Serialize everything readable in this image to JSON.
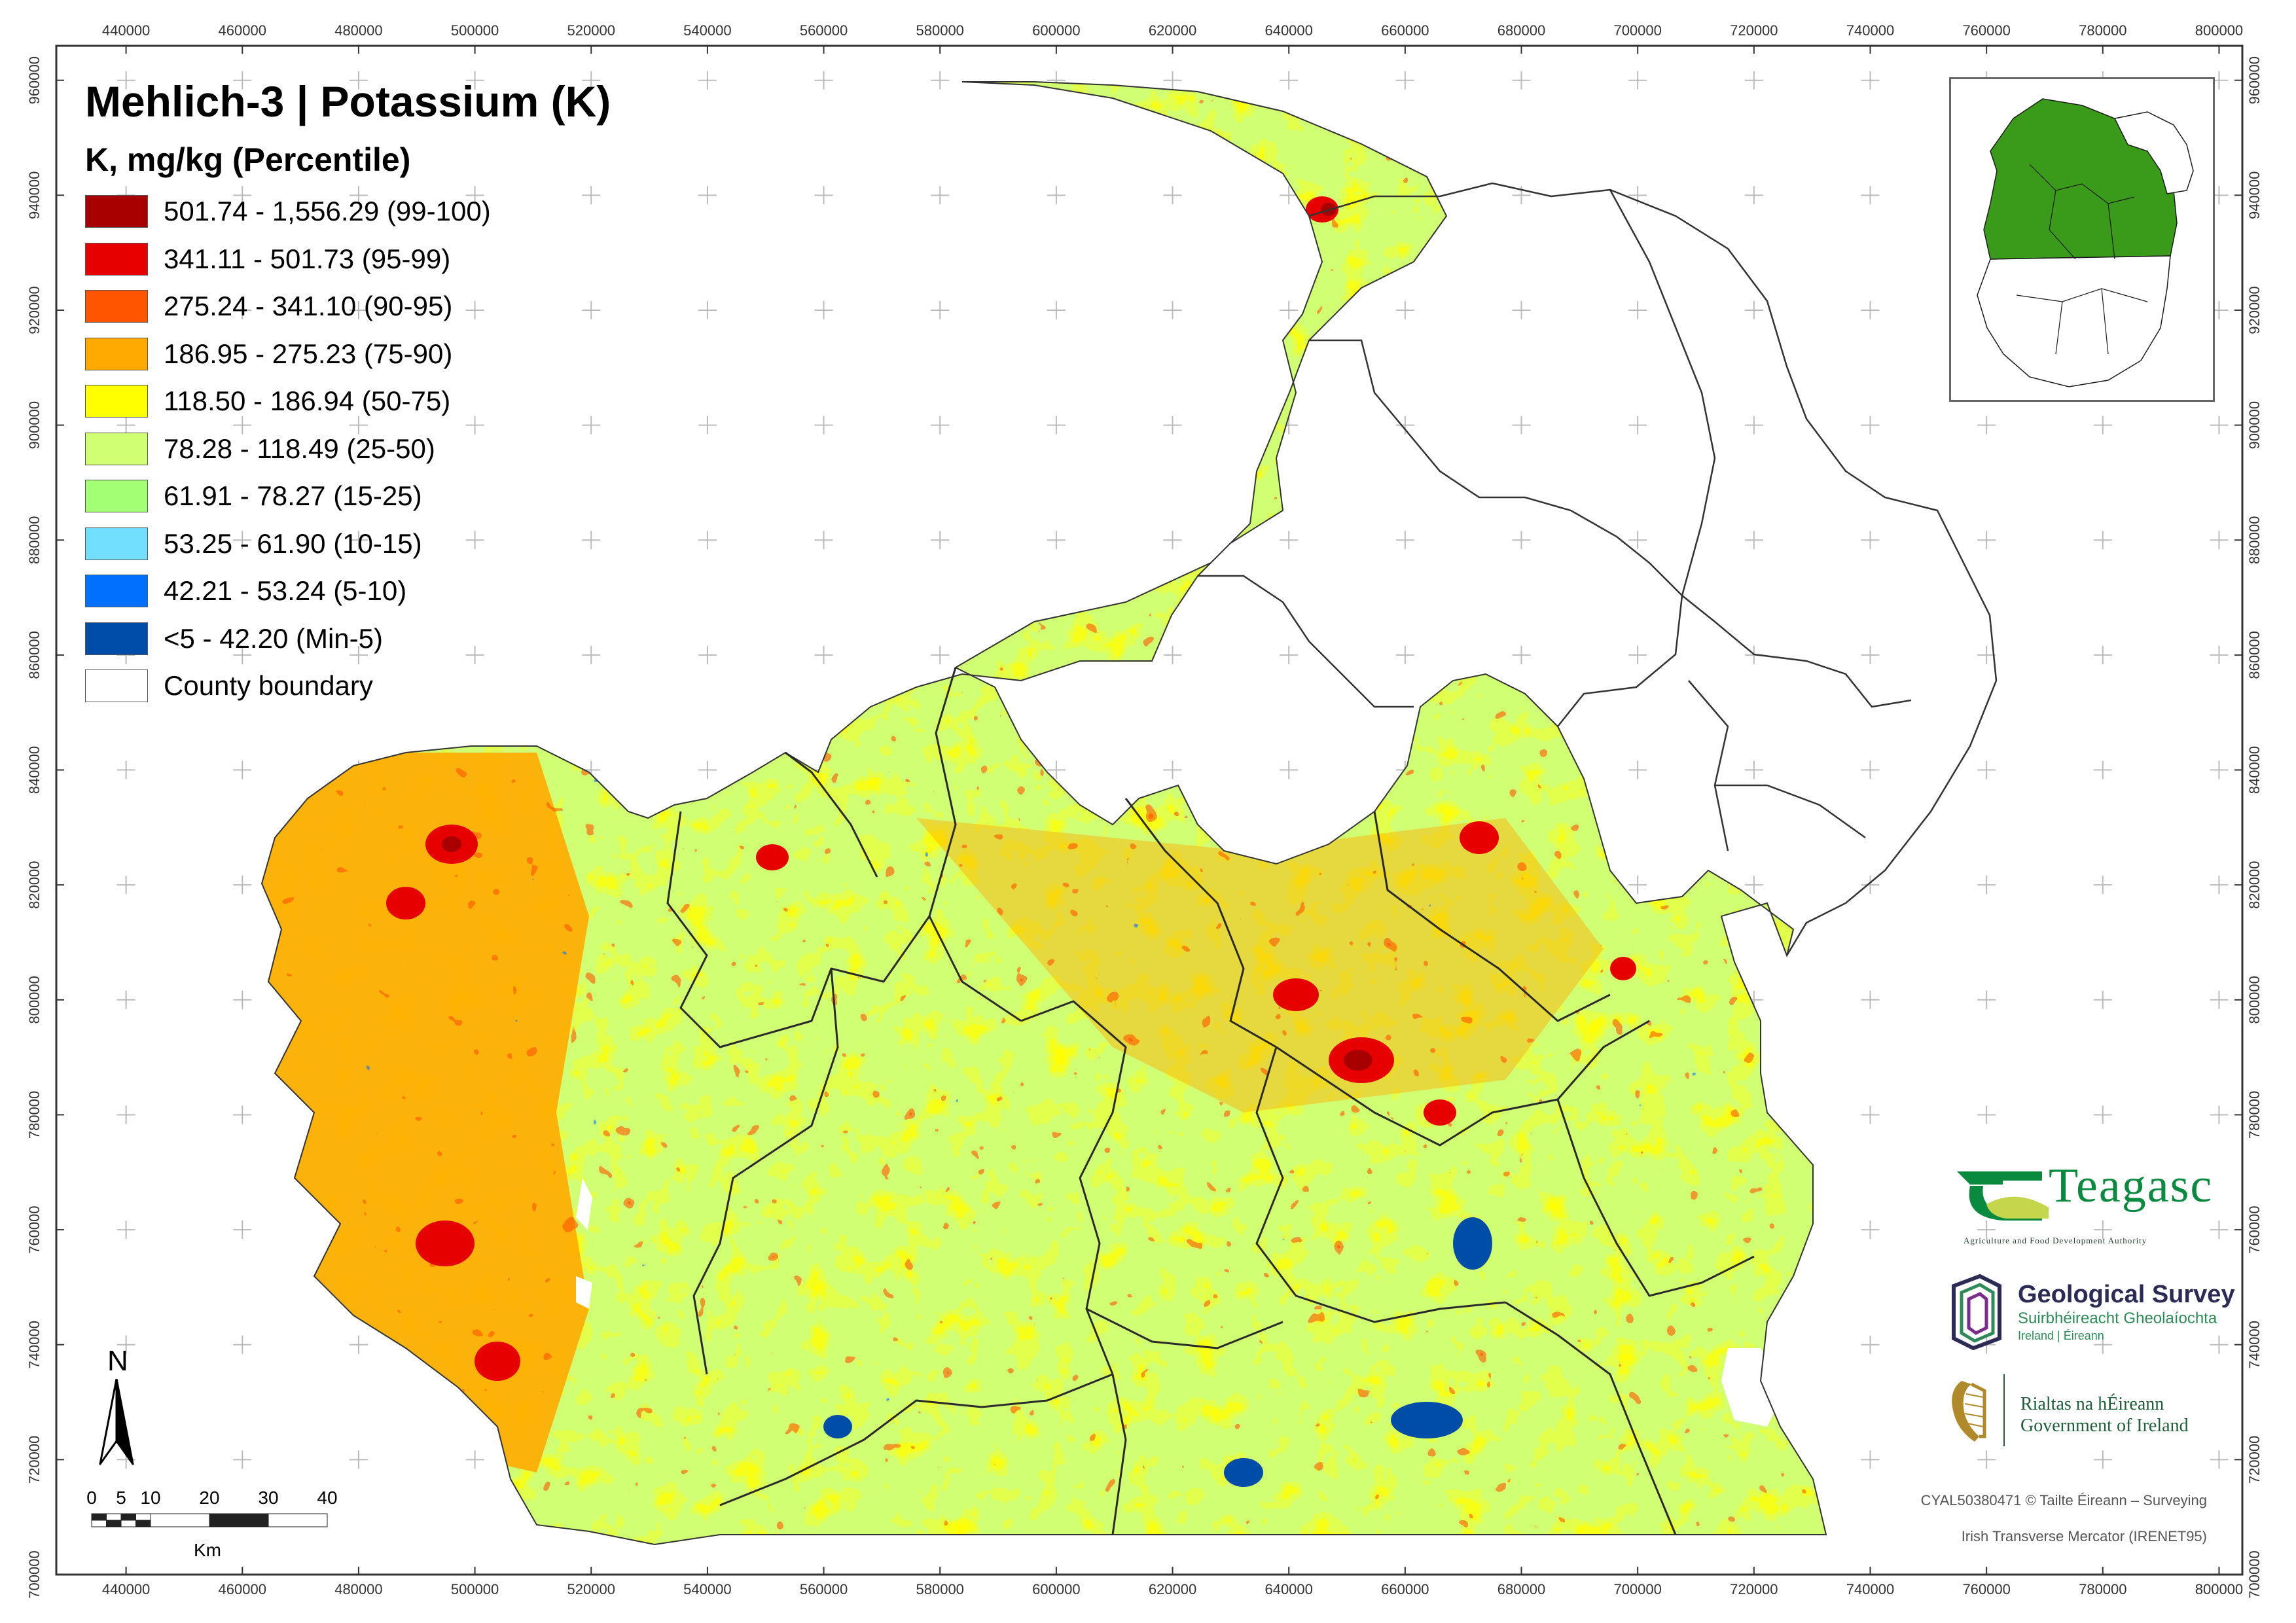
{
  "title": "Mehlich-3 | Potassium (K)",
  "legend": {
    "subtitle": "K, mg/kg (Percentile)",
    "classes": [
      {
        "label": "501.74 - 1,556.29 (99-100)",
        "color": "#a80000"
      },
      {
        "label": "341.11 - 501.73 (95-99)",
        "color": "#e60000"
      },
      {
        "label": "275.24 - 341.10 (90-95)",
        "color": "#ff5500"
      },
      {
        "label": "186.95 - 275.23 (75-90)",
        "color": "#ffaa00"
      },
      {
        "label": "118.50 - 186.94 (50-75)",
        "color": "#ffff00"
      },
      {
        "label": "78.28 - 118.49 (25-50)",
        "color": "#d1ff73"
      },
      {
        "label": "61.91 - 78.27 (15-25)",
        "color": "#a3ff73"
      },
      {
        "label": "53.25 - 61.90 (10-15)",
        "color": "#73dfff"
      },
      {
        "label": "42.21 - 53.24 (5-10)",
        "color": "#0070ff"
      },
      {
        "label": "<5 - 42.20 (Min-5)",
        "color": "#004da8"
      },
      {
        "label": "County boundary",
        "color": "#ffffff"
      }
    ]
  },
  "axes": {
    "x_ticks": [
      "440000",
      "460000",
      "480000",
      "500000",
      "520000",
      "540000",
      "560000",
      "580000",
      "600000",
      "620000",
      "640000",
      "660000",
      "680000",
      "700000",
      "720000",
      "740000",
      "760000",
      "780000",
      "800000"
    ],
    "y_ticks": [
      "960000",
      "940000",
      "920000",
      "900000",
      "880000",
      "860000",
      "840000",
      "820000",
      "800000",
      "780000",
      "760000",
      "740000",
      "720000",
      "700000"
    ],
    "x_range": [
      428000,
      804000
    ],
    "y_range": [
      700000,
      966000
    ]
  },
  "north_arrow": {
    "label": "N"
  },
  "scale_bar": {
    "ticks": [
      "0",
      "5",
      "10",
      "20",
      "30",
      "40"
    ],
    "unit": "Km"
  },
  "logos": {
    "teagasc": {
      "name": "Teagasc",
      "tagline": "Agriculture and Food Development Authority"
    },
    "gsi": {
      "name": "Geological Survey",
      "irish": "Suirbhéireacht Gheolaíochta",
      "sub": "Ireland | Éireann"
    },
    "gov": {
      "irish": "Rialtas na hÉireann",
      "english": "Government of Ireland"
    }
  },
  "credits": {
    "copyright": "CYAL50380471 © Tailte Éireann – Surveying",
    "projection": "Irish Transverse Mercator (IRENET95)"
  }
}
